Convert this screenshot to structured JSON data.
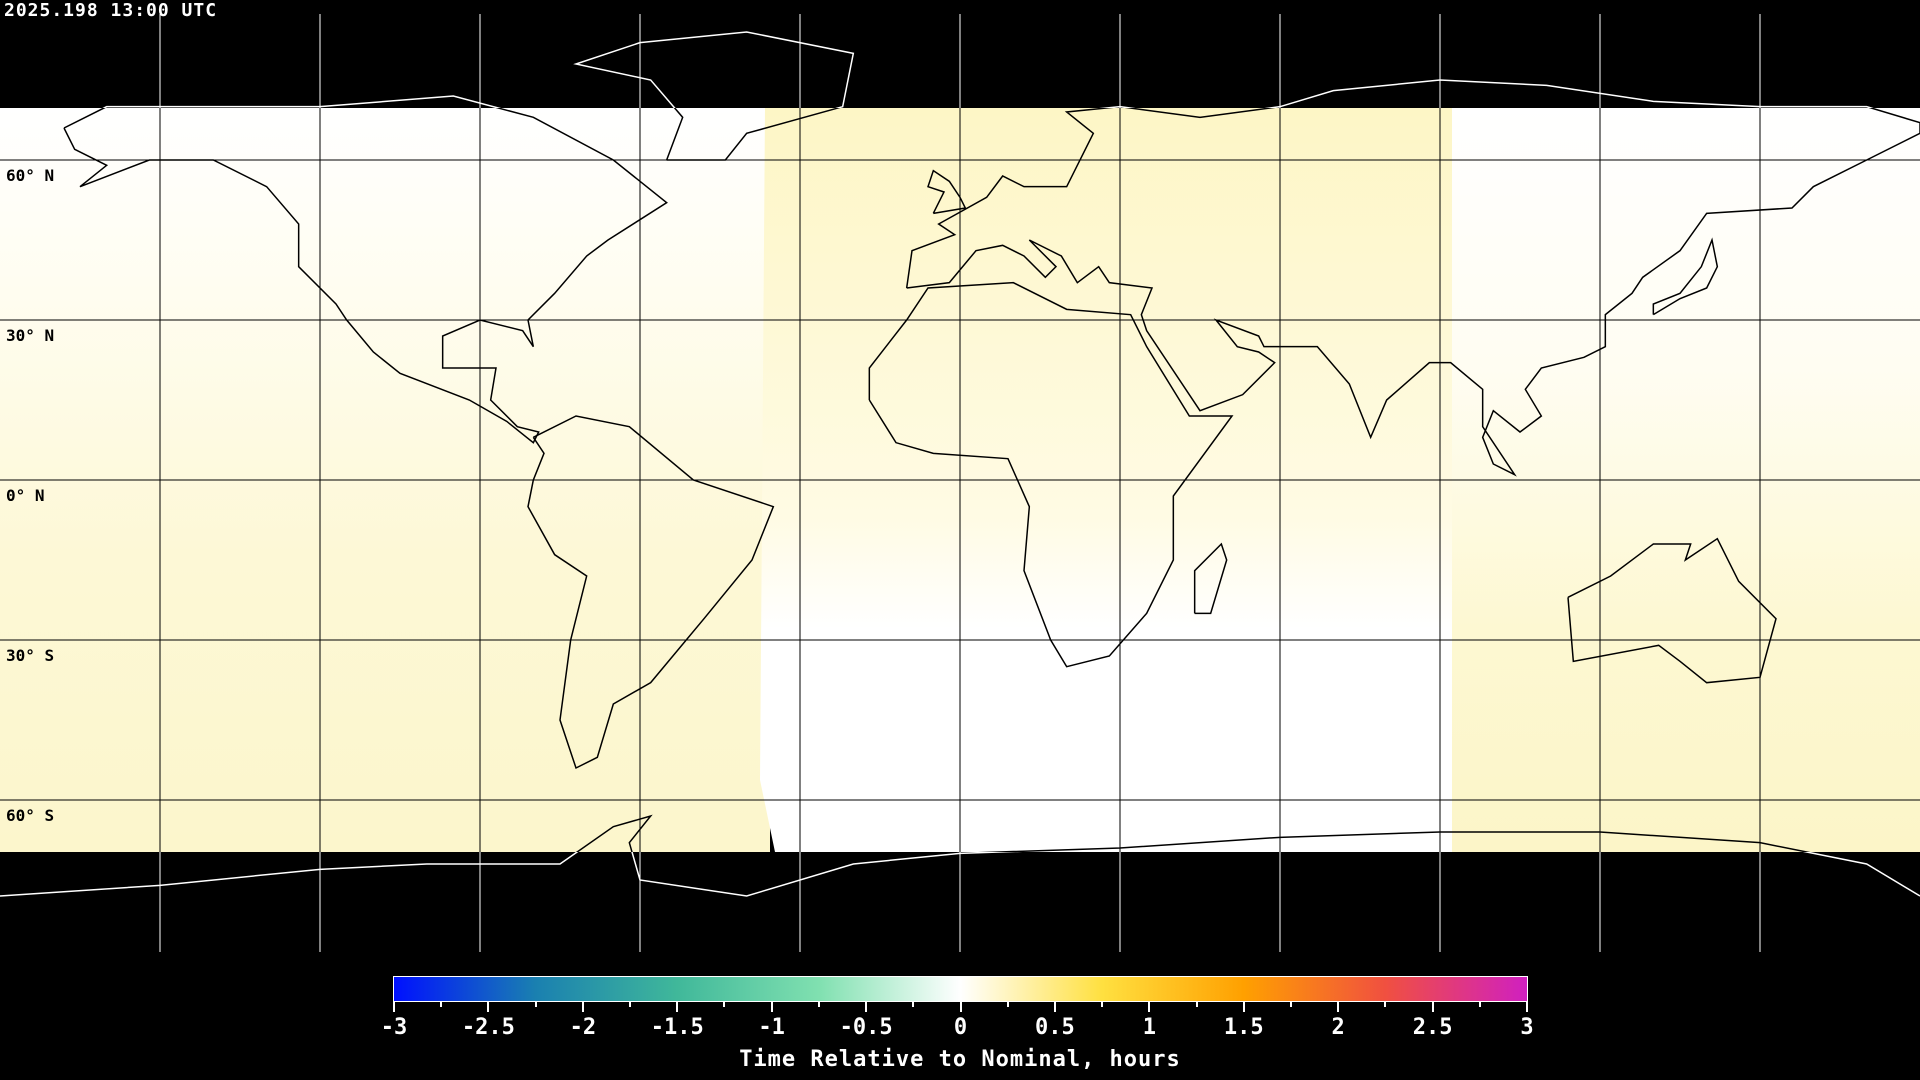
{
  "header": {
    "timestamp": "2025.198 13:00 UTC"
  },
  "map": {
    "projection": "equirectangular",
    "lat_labels": [
      "60° N",
      "30° N",
      "0° N",
      "30° S",
      "60° S"
    ],
    "lat_values": [
      60,
      30,
      0,
      -30,
      -60
    ],
    "grid_lon_step": 30,
    "grid_lat_step": 30,
    "no_data_color": "#000000",
    "coastline_color": "#000000"
  },
  "colorbar": {
    "title": "Time Relative to Nominal, hours",
    "min": -3,
    "max": 3,
    "tick_labels": [
      "-3",
      "-2.5",
      "-2",
      "-1.5",
      "-1",
      "-0.5",
      "0",
      "0.5",
      "1",
      "1.5",
      "2",
      "2.5",
      "3"
    ],
    "colors": [
      "#0010ff",
      "#1a80b0",
      "#40b89a",
      "#80e0b0",
      "#ffffff",
      "#ffe040",
      "#ffa000",
      "#f05040",
      "#d020c0"
    ]
  }
}
